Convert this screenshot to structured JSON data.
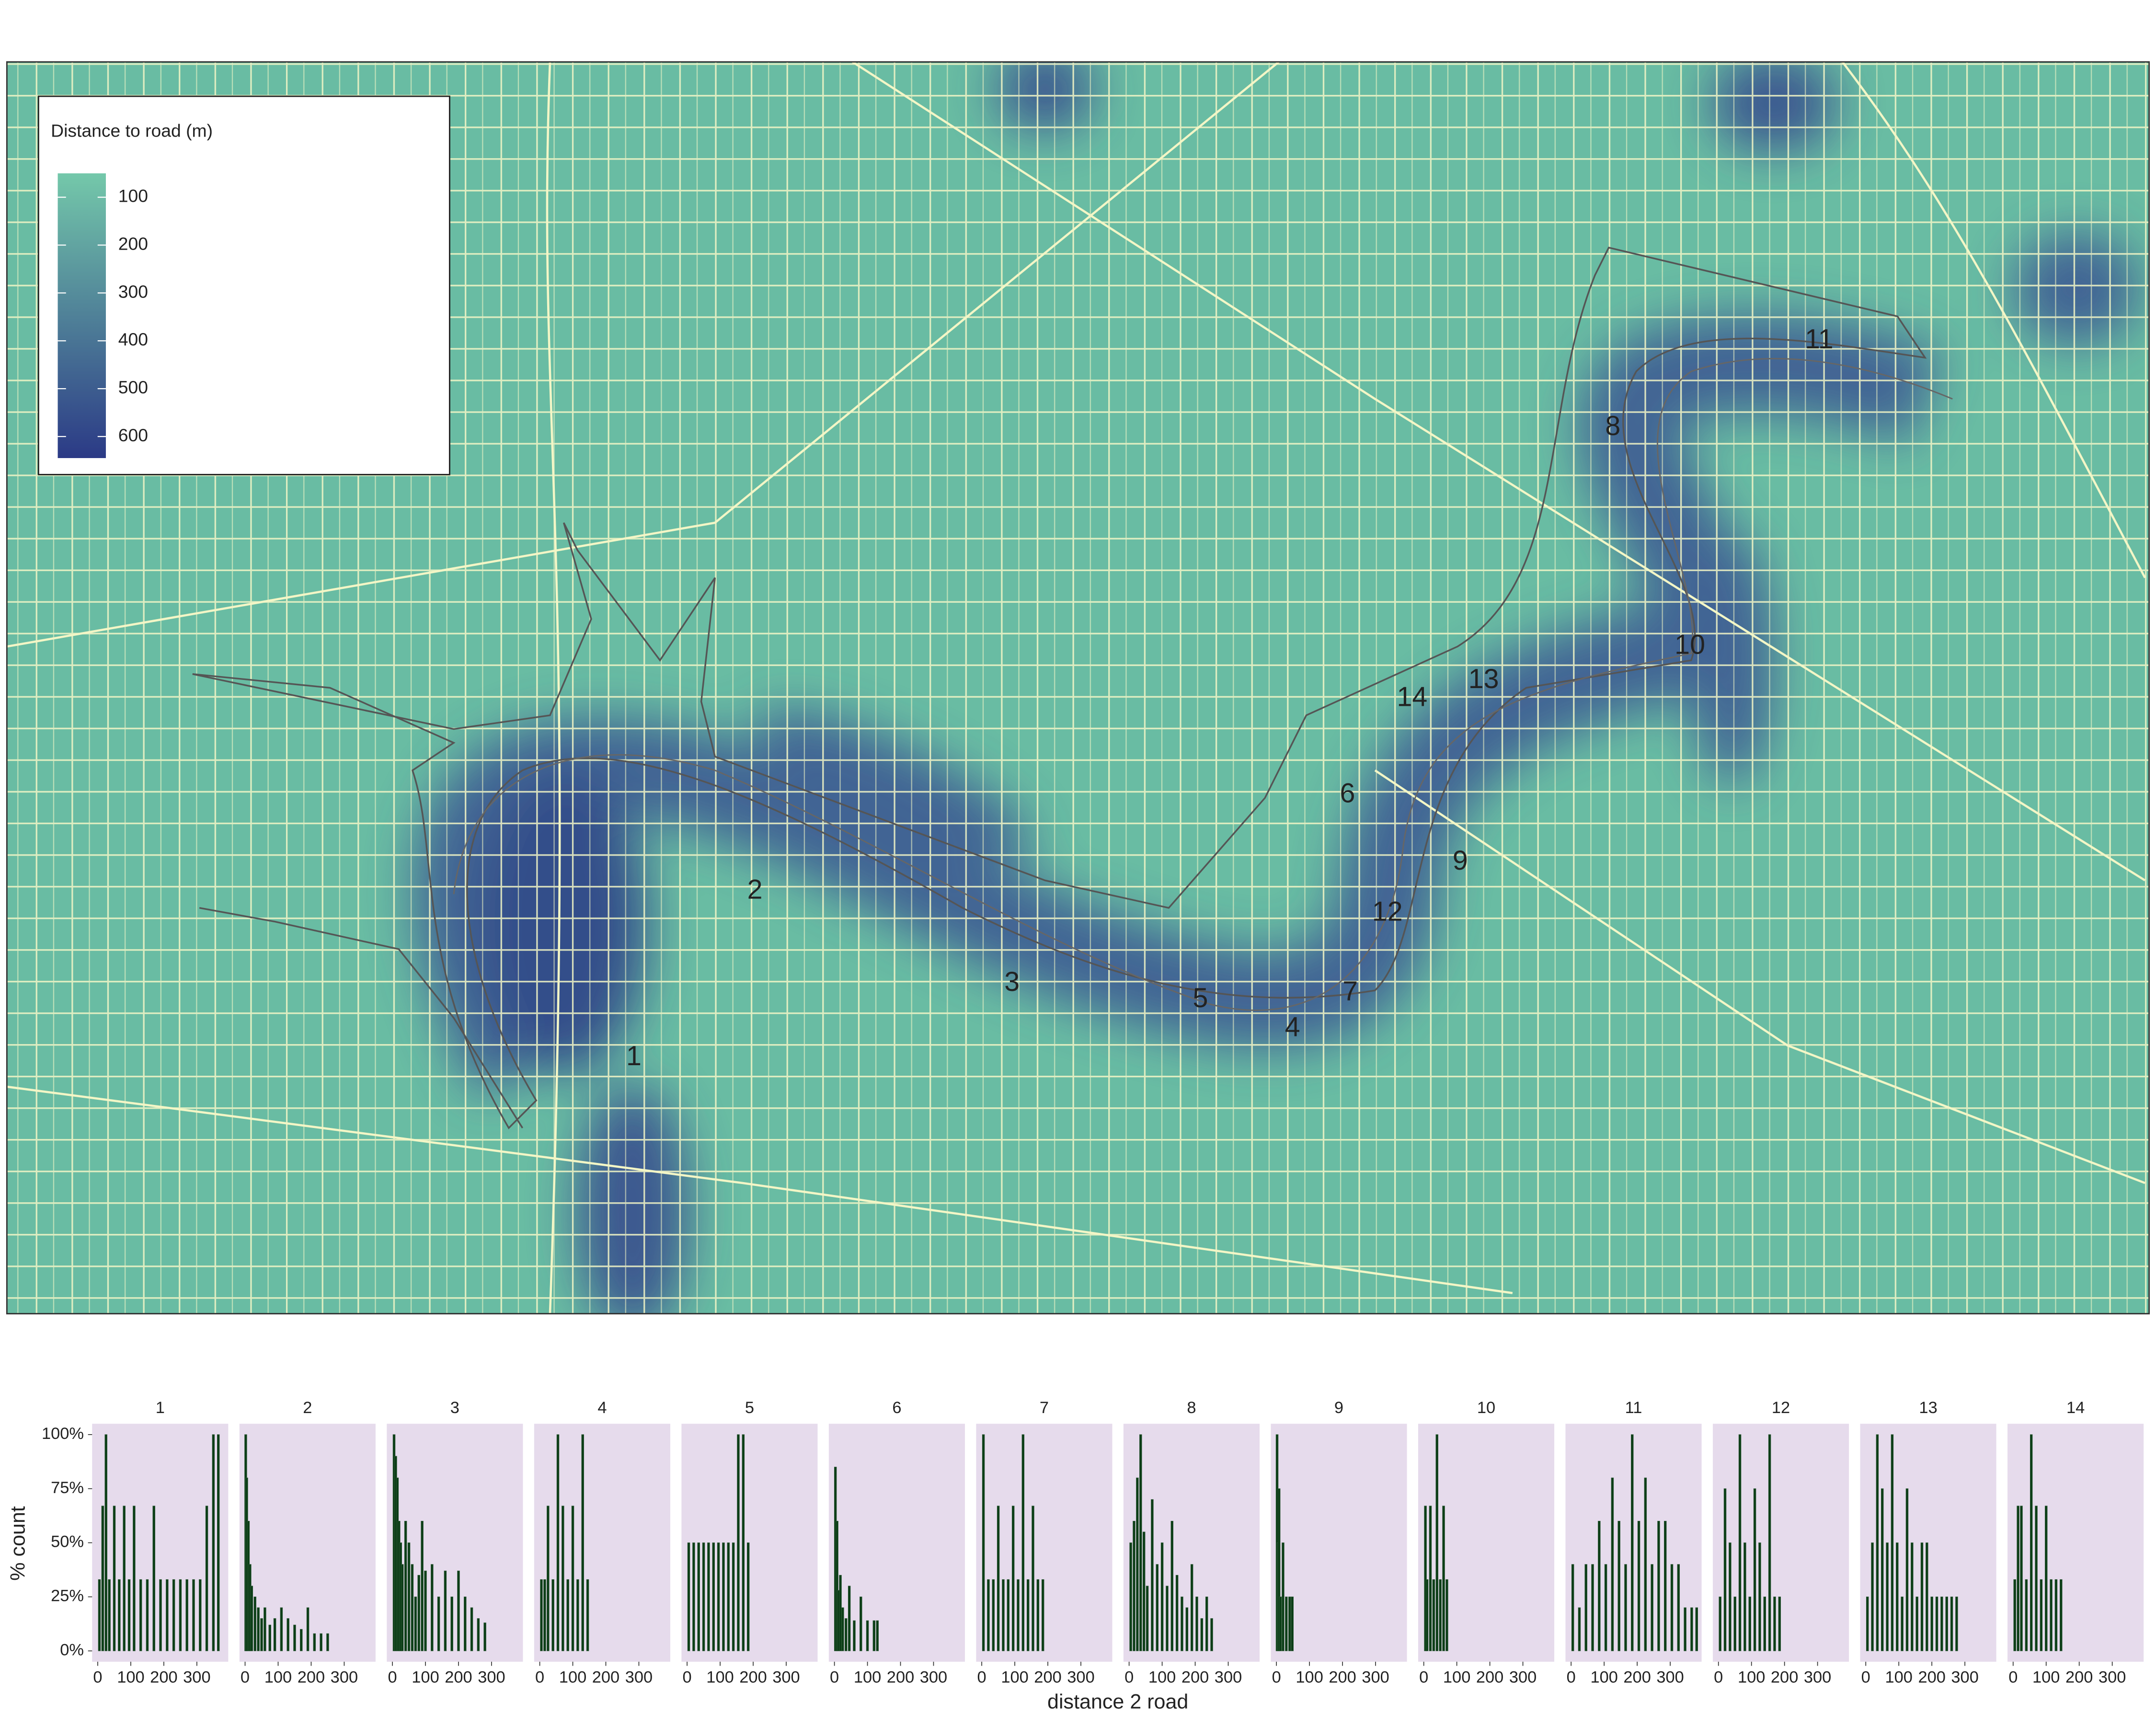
{
  "chart_data": [
    {
      "type": "map",
      "legend_title": "Distance to road (m)",
      "colorbar_lim": [
        50,
        645
      ],
      "colorbar_ticks": [
        100,
        200,
        300,
        400,
        500,
        600
      ],
      "colorbar_colors": [
        "#74c8aa",
        "#2b3a86"
      ],
      "labels": [
        "1",
        "2",
        "3",
        "4",
        "5",
        "6",
        "7",
        "8",
        "9",
        "10",
        "11",
        "12",
        "13",
        "14"
      ]
    },
    {
      "type": "histogram",
      "x_label": "distance 2 road",
      "y_label": "% count",
      "xlim": [
        -17,
        395
      ],
      "ylim": [
        -5,
        105
      ],
      "xticks": [
        0,
        100,
        200,
        300
      ],
      "yticks": [
        {
          "value": 0,
          "label": "0%"
        },
        {
          "value": 25,
          "label": "25%"
        },
        {
          "value": 50,
          "label": "50%"
        },
        {
          "value": 75,
          "label": "75%"
        },
        {
          "value": 100,
          "label": "100%"
        }
      ],
      "color": "#0b3d16",
      "panel_color": "#e6dbec",
      "series": [
        {
          "name": "1",
          "x": [
            5,
            15,
            25,
            35,
            50,
            65,
            80,
            95,
            110,
            130,
            150,
            170,
            190,
            210,
            230,
            250,
            270,
            290,
            310,
            330,
            350,
            365
          ],
          "values": [
            33,
            67,
            100,
            33,
            67,
            33,
            67,
            33,
            67,
            33,
            33,
            67,
            33,
            33,
            33,
            33,
            33,
            33,
            33,
            67,
            100,
            100
          ]
        },
        {
          "name": "2",
          "x": [
            2,
            5,
            10,
            15,
            20,
            30,
            40,
            50,
            60,
            75,
            90,
            110,
            130,
            150,
            170,
            190,
            210,
            230,
            250
          ],
          "values": [
            100,
            80,
            60,
            40,
            30,
            25,
            20,
            15,
            20,
            12,
            15,
            20,
            15,
            12,
            10,
            20,
            8,
            8,
            8
          ]
        },
        {
          "name": "3",
          "x": [
            5,
            10,
            15,
            20,
            25,
            30,
            40,
            50,
            60,
            70,
            80,
            90,
            100,
            120,
            140,
            160,
            180,
            200,
            220,
            240,
            260,
            280
          ],
          "values": [
            100,
            90,
            80,
            60,
            50,
            40,
            60,
            50,
            40,
            25,
            35,
            60,
            37,
            40,
            25,
            37,
            25,
            37,
            25,
            20,
            15,
            13
          ]
        },
        {
          "name": "4",
          "x": [
            5,
            15,
            25,
            40,
            55,
            70,
            85,
            100,
            115,
            130,
            145
          ],
          "values": [
            33,
            33,
            67,
            33,
            100,
            67,
            33,
            67,
            33,
            100,
            33
          ]
        },
        {
          "name": "5",
          "x": [
            5,
            20,
            35,
            50,
            65,
            80,
            95,
            110,
            125,
            140,
            155,
            170,
            185
          ],
          "values": [
            50,
            50,
            50,
            50,
            50,
            50,
            50,
            50,
            50,
            50,
            100,
            100,
            50
          ]
        },
        {
          "name": "6",
          "x": [
            3,
            8,
            12,
            18,
            25,
            35,
            45,
            60,
            80,
            100,
            120,
            130
          ],
          "values": [
            85,
            60,
            28,
            35,
            20,
            15,
            30,
            14,
            25,
            14,
            14,
            14
          ]
        },
        {
          "name": "7",
          "x": [
            5,
            20,
            35,
            50,
            65,
            80,
            95,
            110,
            125,
            140,
            155,
            170,
            185
          ],
          "values": [
            100,
            33,
            33,
            67,
            33,
            33,
            67,
            33,
            100,
            33,
            67,
            33,
            33
          ]
        },
        {
          "name": "8",
          "x": [
            5,
            15,
            25,
            35,
            45,
            55,
            70,
            85,
            100,
            115,
            130,
            145,
            160,
            175,
            190,
            205,
            220,
            235,
            250
          ],
          "values": [
            50,
            60,
            80,
            100,
            55,
            30,
            70,
            40,
            50,
            30,
            60,
            35,
            25,
            20,
            40,
            25,
            15,
            25,
            15
          ]
        },
        {
          "name": "9",
          "x": [
            2,
            5,
            8,
            12,
            20,
            30,
            40,
            48
          ],
          "values": [
            100,
            50,
            75,
            25,
            50,
            25,
            25,
            25
          ]
        },
        {
          "name": "10",
          "x": [
            5,
            10,
            20,
            30,
            40,
            50,
            60,
            70
          ],
          "values": [
            67,
            33,
            67,
            33,
            100,
            33,
            67,
            33
          ]
        },
        {
          "name": "11",
          "x": [
            5,
            25,
            45,
            65,
            85,
            105,
            125,
            145,
            165,
            185,
            205,
            225,
            245,
            265,
            285,
            305,
            325,
            345,
            365,
            380
          ],
          "values": [
            40,
            20,
            40,
            40,
            60,
            40,
            80,
            60,
            40,
            100,
            60,
            80,
            40,
            60,
            60,
            40,
            40,
            20,
            20,
            20
          ]
        },
        {
          "name": "12",
          "x": [
            5,
            20,
            35,
            50,
            65,
            80,
            95,
            110,
            125,
            140,
            155,
            170,
            185
          ],
          "values": [
            25,
            75,
            50,
            25,
            100,
            50,
            25,
            75,
            50,
            25,
            100,
            25,
            25
          ]
        },
        {
          "name": "13",
          "x": [
            5,
            20,
            35,
            50,
            65,
            80,
            95,
            110,
            125,
            140,
            155,
            170,
            185,
            200,
            215,
            230,
            245,
            260,
            275
          ],
          "values": [
            25,
            50,
            100,
            75,
            50,
            100,
            50,
            25,
            75,
            50,
            25,
            50,
            50,
            25,
            25,
            25,
            25,
            25,
            25
          ]
        },
        {
          "name": "14",
          "x": [
            5,
            15,
            25,
            40,
            55,
            70,
            85,
            100,
            115,
            130,
            145
          ],
          "values": [
            33,
            67,
            67,
            33,
            100,
            67,
            33,
            67,
            33,
            33,
            33
          ]
        }
      ]
    }
  ]
}
